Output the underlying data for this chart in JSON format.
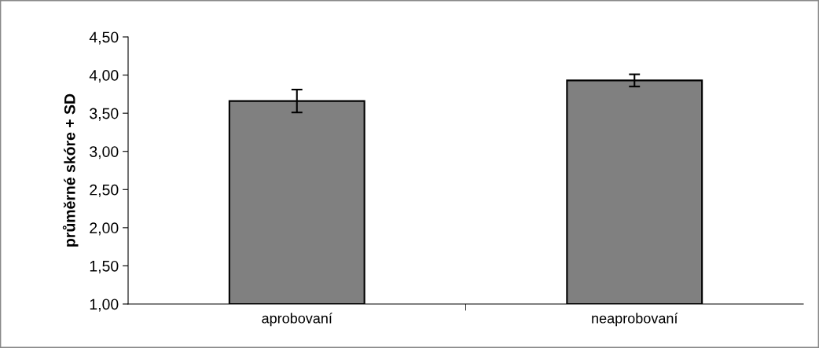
{
  "chart_data": {
    "type": "bar",
    "ylabel": "průměrné skóre + SD",
    "categories": [
      "aprobovaní",
      "neaprobovaní"
    ],
    "values": [
      3.66,
      3.93
    ],
    "errors": [
      0.15,
      0.08
    ],
    "color": "#808080",
    "ylim": [
      1.0,
      4.5
    ],
    "yticks": [
      {
        "value": 1.0,
        "label": "1,00"
      },
      {
        "value": 1.5,
        "label": "1,50"
      },
      {
        "value": 2.0,
        "label": "2,00"
      },
      {
        "value": 2.5,
        "label": "2,50"
      },
      {
        "value": 3.0,
        "label": "3,00"
      },
      {
        "value": 3.5,
        "label": "3,50"
      },
      {
        "value": 4.0,
        "label": "4,00"
      },
      {
        "value": 4.5,
        "label": "4,50"
      }
    ],
    "grid": false,
    "legend": false
  }
}
